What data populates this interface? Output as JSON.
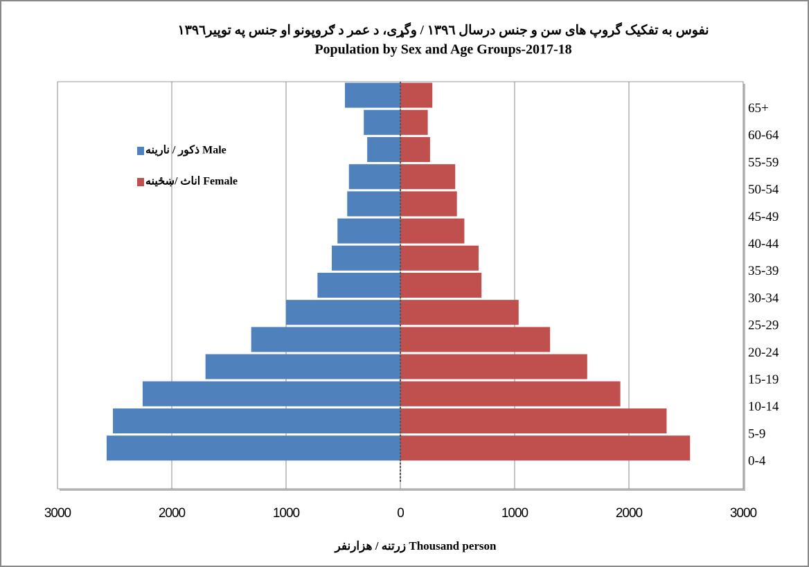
{
  "chart_data": {
    "type": "pyramid",
    "title": "نفوس  به تفکیک گروپ های سن و جنس درسال ۱۳۹٦ /    وگړی، د عمر د ګروپونو او جنس په توپیر۱۳۹٦",
    "subtitle": "Population  by Sex and Age Groups-2017-18",
    "x_label": "زرتنه / هزارنفر Thousand person",
    "categories": [
      "0-4",
      "5-9",
      "10-14",
      "15-19",
      "20-24",
      "25-29",
      "30-34",
      "35-39",
      "40-44",
      "45-49",
      "50-54",
      "55-59",
      "60-64",
      "65+"
    ],
    "series": [
      {
        "name": "ذکور / نارینه Male",
        "color": "#4f81bd",
        "values": [
          -2570,
          -2515,
          -2255,
          -1705,
          -1305,
          -1000,
          -725,
          -600,
          -550,
          -465,
          -450,
          -290,
          -320,
          -485
        ]
      },
      {
        "name": "اناث /ښځینه Female",
        "color": "#c0504d",
        "values": [
          2535,
          2330,
          1925,
          1635,
          1310,
          1035,
          710,
          685,
          560,
          495,
          480,
          260,
          240,
          280
        ]
      }
    ],
    "xlim": [
      -3000,
      3000
    ],
    "xticks": [
      {
        "value": -3000,
        "label": "3000"
      },
      {
        "value": -2000,
        "label": "2000"
      },
      {
        "value": -1000,
        "label": "1000"
      },
      0,
      1000,
      2000,
      3000
    ],
    "grid": true
  }
}
